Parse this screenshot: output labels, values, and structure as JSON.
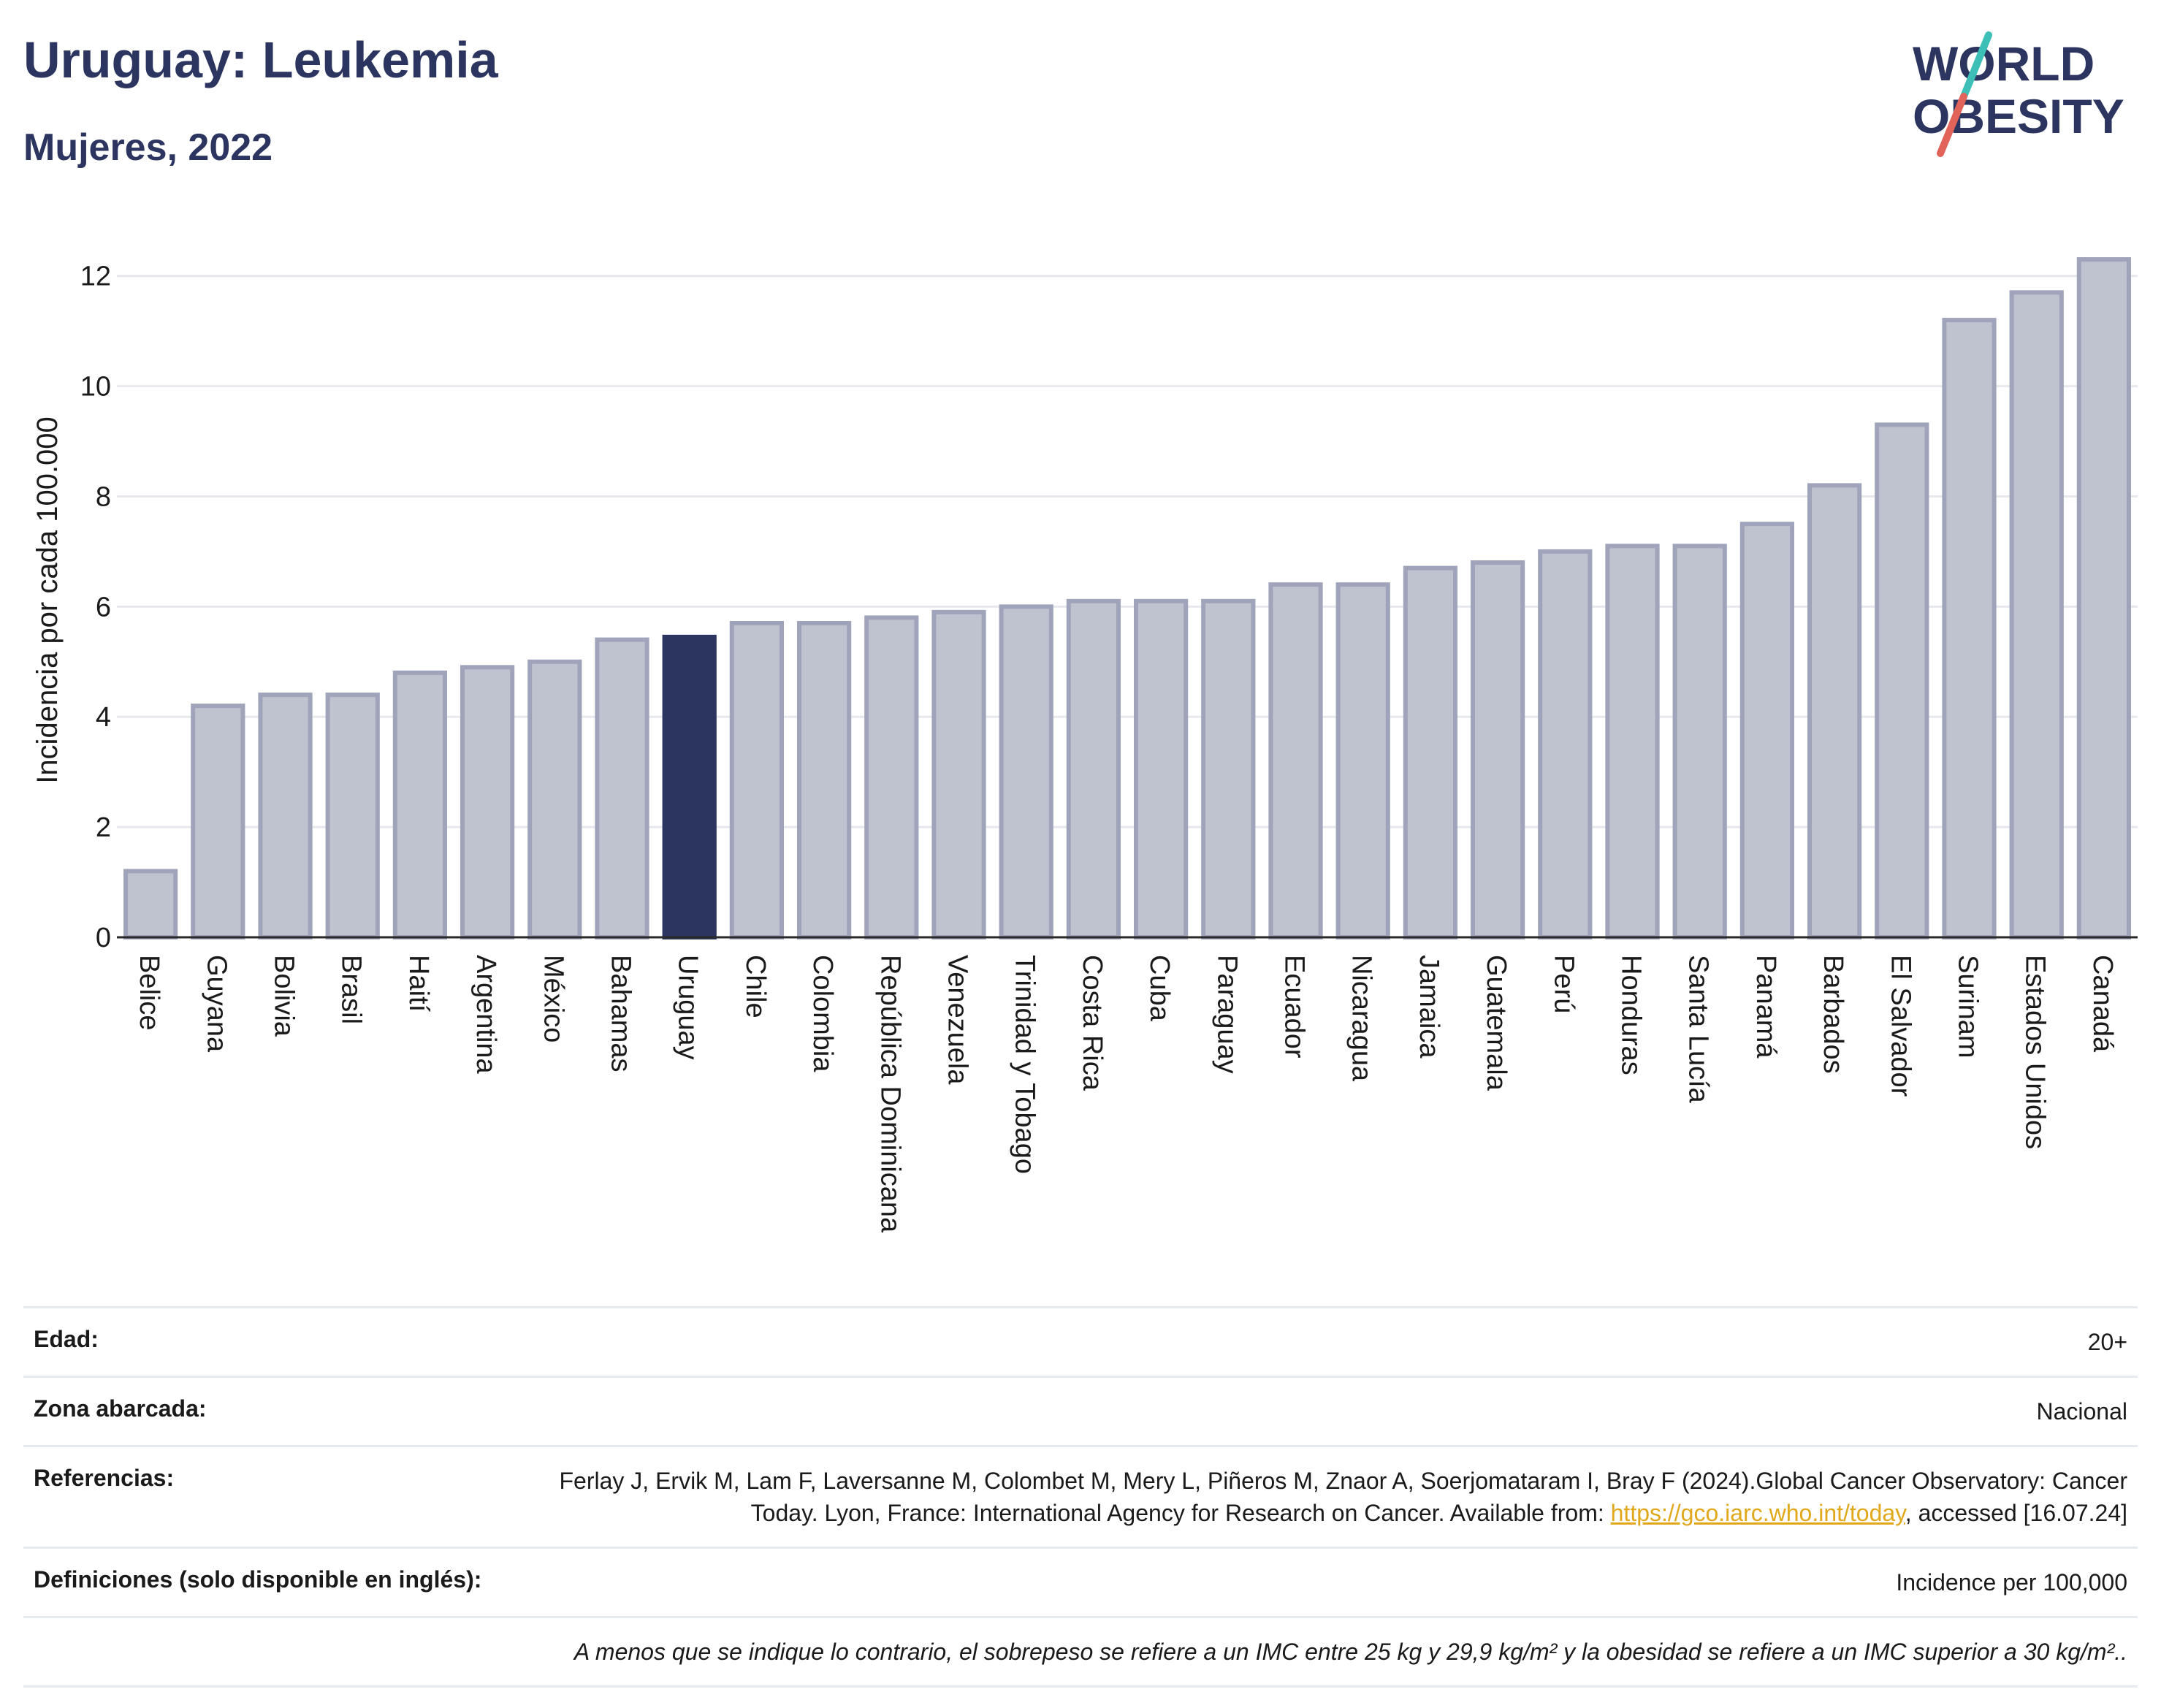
{
  "header": {
    "title": "Uruguay: Leukemia",
    "subtitle": "Mujeres, 2022"
  },
  "logo": {
    "line1": "WORLD",
    "line2": "OBESITY"
  },
  "colors": {
    "highlight": "#2c3560",
    "bar": "#bfc3d0",
    "bar_border": "#9fa4ba",
    "slash_teal": "#3dbfb8",
    "slash_red": "#e2635a"
  },
  "chart_data": {
    "type": "bar",
    "ylabel": "Incidencia por cada 100.000",
    "ylim": [
      0,
      12.5
    ],
    "yticks": [
      0,
      2,
      4,
      6,
      8,
      10,
      12
    ],
    "grid": true,
    "highlight": "Uruguay",
    "categories": [
      "Belice",
      "Guyana",
      "Bolivia",
      "Brasil",
      "Haití",
      "Argentina",
      "México",
      "Bahamas",
      "Uruguay",
      "Chile",
      "Colombia",
      "República Dominicana",
      "Venezuela",
      "Trinidad y Tobago",
      "Costa Rica",
      "Cuba",
      "Paraguay",
      "Ecuador",
      "Nicaragua",
      "Jamaica",
      "Guatemala",
      "Perú",
      "Honduras",
      "Santa Lucía",
      "Panamá",
      "Barbados",
      "El Salvador",
      "Surinam",
      "Estados Unidos",
      "Canadá"
    ],
    "values": [
      1.2,
      4.2,
      4.4,
      4.4,
      4.8,
      4.9,
      5.0,
      5.4,
      5.45,
      5.7,
      5.7,
      5.8,
      5.9,
      6.0,
      6.1,
      6.1,
      6.1,
      6.4,
      6.4,
      6.7,
      6.8,
      7.0,
      7.1,
      7.1,
      7.5,
      8.2,
      9.3,
      11.2,
      11.7,
      12.3
    ]
  },
  "info": {
    "edad_label": "Edad:",
    "edad_value": "20+",
    "zona_label": "Zona abarcada:",
    "zona_value": "Nacional",
    "ref_label": "Referencias:",
    "ref_text_1": "Ferlay J, Ervik M, Lam F, Laversanne M, Colombet M, Mery L, Piñeros M, Znaor A, Soerjomataram I, Bray F (2024).Global Cancer Observatory: Cancer Today. Lyon, France: International Agency for Research on Cancer. Available from: ",
    "ref_link": "https://gco.iarc.who.int/today",
    "ref_text_2": ", accessed [16.07.24]",
    "def_label": "Definiciones (solo disponible en inglés):",
    "def_value": "Incidence per 100,000",
    "note": "A menos que se indique lo contrario, el sobrepeso se refiere a un IMC entre 25 kg y 29,9 kg/m² y la obesidad se refiere a un IMC superior a 30 kg/m².."
  }
}
